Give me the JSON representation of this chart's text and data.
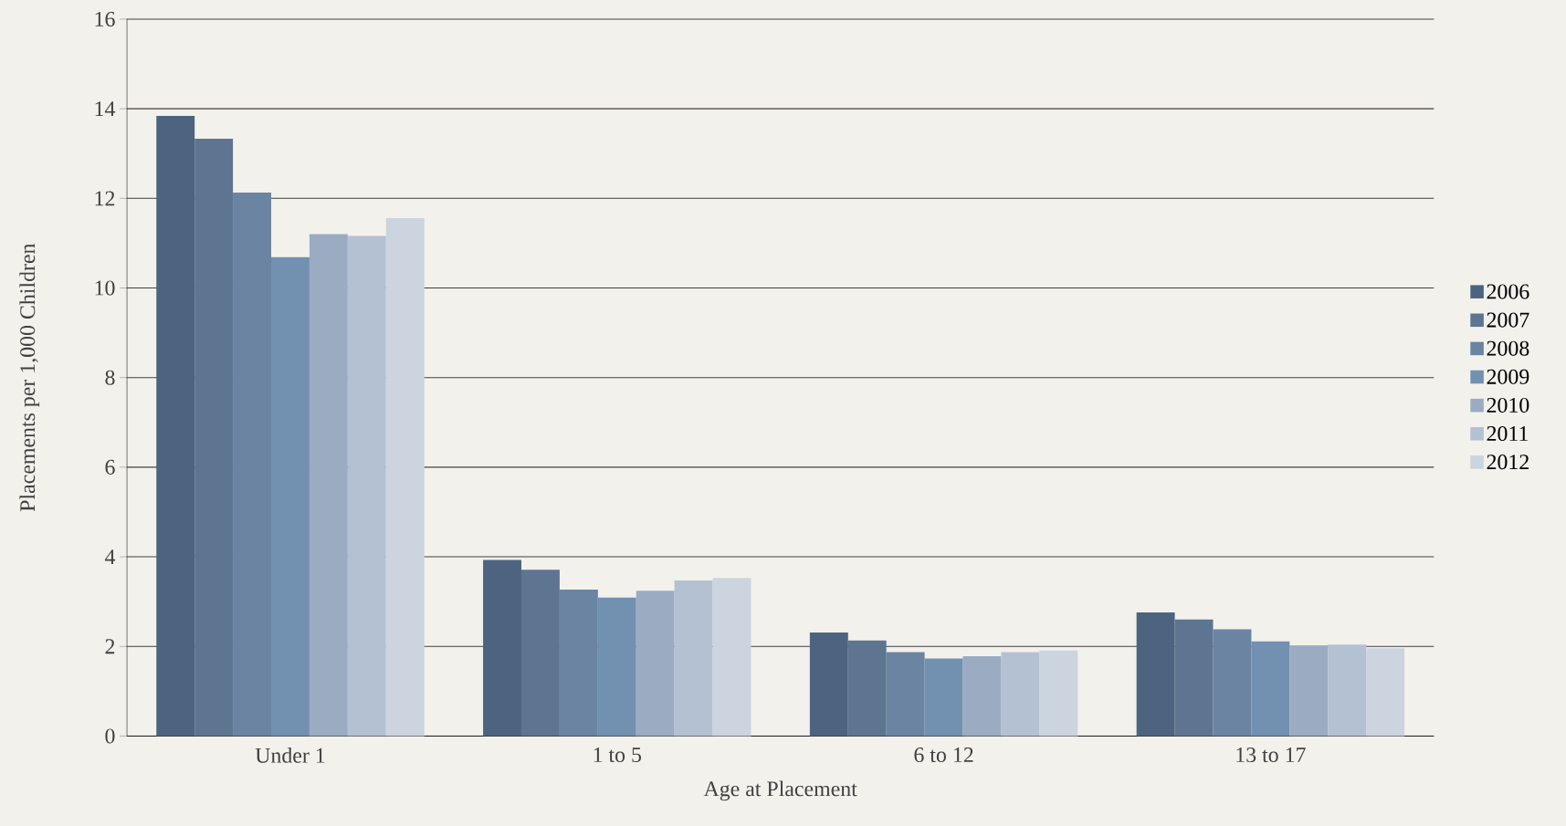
{
  "chart_data": {
    "type": "bar",
    "xlabel": "Age at Placement",
    "ylabel": "Placements per 1,000 Children",
    "categories": [
      "Under 1",
      "1 to 5",
      "6 to 12",
      "13 to 17"
    ],
    "series": [
      {
        "name": "2006",
        "color": "#4d6480",
        "values": [
          13.84,
          3.93,
          2.31,
          2.76
        ]
      },
      {
        "name": "2007",
        "color": "#5d7590",
        "values": [
          13.33,
          3.71,
          2.13,
          2.6
        ]
      },
      {
        "name": "2008",
        "color": "#6a84a2",
        "values": [
          12.13,
          3.27,
          1.87,
          2.38
        ]
      },
      {
        "name": "2009",
        "color": "#7290b0",
        "values": [
          10.69,
          3.09,
          1.73,
          2.11
        ]
      },
      {
        "name": "2010",
        "color": "#9aabc2",
        "values": [
          11.2,
          3.24,
          1.78,
          2.02
        ]
      },
      {
        "name": "2011",
        "color": "#b4c1d3",
        "values": [
          11.16,
          3.47,
          1.87,
          2.04
        ]
      },
      {
        "name": "2012",
        "color": "#cbd4df",
        "values": [
          11.56,
          3.53,
          1.91,
          1.96
        ]
      }
    ],
    "ylim": [
      0,
      16
    ],
    "yticks": [
      0,
      2,
      4,
      6,
      8,
      10,
      12,
      14,
      16
    ],
    "grid": "y",
    "legend": "right"
  }
}
